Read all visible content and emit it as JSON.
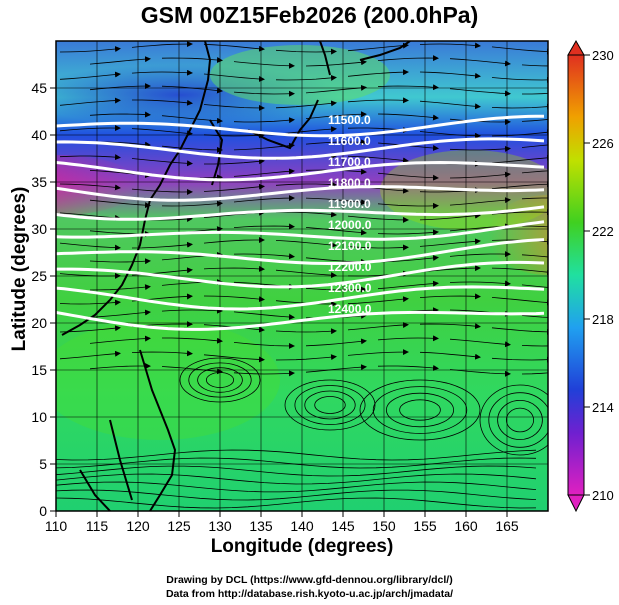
{
  "title": "GSM 00Z15Feb2026 (200.0hPa)",
  "x_axis": {
    "label": "Longitude (degrees)",
    "range": [
      110,
      170
    ],
    "ticks": [
      "110",
      "115",
      "120",
      "125",
      "130",
      "135",
      "140",
      "145",
      "150",
      "155",
      "160",
      "165"
    ]
  },
  "y_axis": {
    "label": "Latitude  (degrees)",
    "range": [
      0,
      50
    ],
    "ticks": [
      "0",
      "5",
      "10",
      "15",
      "20",
      "25",
      "30",
      "35",
      "40",
      "45"
    ]
  },
  "colorbar": {
    "ticks": [
      "210",
      "214",
      "218",
      "222",
      "226",
      "230"
    ],
    "range": [
      210,
      230
    ],
    "colors": [
      "#e020c0",
      "#3030d0",
      "#20a0f0",
      "#20e0a0",
      "#40d020",
      "#e0e000",
      "#f0a000",
      "#e03020"
    ]
  },
  "contour_labels": [
    "11500.0",
    "11600.0",
    "11700.0",
    "11800.0",
    "11900.0",
    "12000.0",
    "12100.0",
    "12200.0",
    "12300.0",
    "12400.0"
  ],
  "credits": {
    "line1": "Drawing by DCL (https://www.gfd-dennou.org/library/dcl/)",
    "line2": "Data from http://database.rish.kyoto-u.ac.jp/arch/jmadata/"
  }
}
